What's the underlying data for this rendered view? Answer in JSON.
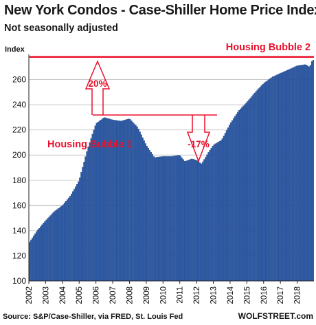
{
  "title": "New York Condos - Case-Shiller Home Price Index",
  "subtitle": "Not seasonally adjusted",
  "ylabel": "Index",
  "source": "Source: S&P/Case-Shiller, via FRED,  St. Louis Fed",
  "watermark": "WOLFSTREET.com",
  "colors": {
    "bars": "#2b59a6",
    "bar_edge": "#1a3f80",
    "annotation": "#e8112d"
  },
  "annotations": {
    "bubble2": "Housing Bubble 2",
    "bubble1": "Housing Bubble 1",
    "up_pct": "20%",
    "down_pct": "-17%"
  },
  "chart_data": {
    "type": "bar",
    "xlim": [
      2002,
      2019
    ],
    "ylim": [
      100,
      280
    ],
    "yticks": [
      100,
      120,
      140,
      160,
      180,
      200,
      220,
      240,
      260
    ],
    "xticks": [
      "2002",
      "2003",
      "2004",
      "2005",
      "2006",
      "2007",
      "2008",
      "2009",
      "2010",
      "2011",
      "2012",
      "2013",
      "2014",
      "2015",
      "2016",
      "2017",
      "2018"
    ],
    "series_anchors": [
      [
        2002.0,
        130
      ],
      [
        2002.5,
        140
      ],
      [
        2003.0,
        148
      ],
      [
        2003.5,
        155
      ],
      [
        2004.0,
        160
      ],
      [
        2004.5,
        168
      ],
      [
        2005.0,
        180
      ],
      [
        2005.5,
        205
      ],
      [
        2006.0,
        225
      ],
      [
        2006.5,
        230
      ],
      [
        2007.0,
        228
      ],
      [
        2007.5,
        227
      ],
      [
        2008.0,
        229
      ],
      [
        2008.5,
        222
      ],
      [
        2009.0,
        208
      ],
      [
        2009.5,
        198
      ],
      [
        2010.0,
        199
      ],
      [
        2010.5,
        199
      ],
      [
        2011.0,
        200
      ],
      [
        2011.3,
        195
      ],
      [
        2011.7,
        197
      ],
      [
        2012.0,
        196
      ],
      [
        2012.3,
        193
      ],
      [
        2012.7,
        202
      ],
      [
        2013.0,
        208
      ],
      [
        2013.5,
        212
      ],
      [
        2014.0,
        225
      ],
      [
        2014.5,
        235
      ],
      [
        2015.0,
        242
      ],
      [
        2015.5,
        250
      ],
      [
        2016.0,
        257
      ],
      [
        2016.5,
        262
      ],
      [
        2017.0,
        265
      ],
      [
        2017.5,
        268
      ],
      [
        2018.0,
        271
      ],
      [
        2018.5,
        272
      ],
      [
        2018.75,
        270
      ],
      [
        2018.92,
        276
      ],
      [
        2019.0,
        275
      ]
    ],
    "reference_line": 278
  }
}
